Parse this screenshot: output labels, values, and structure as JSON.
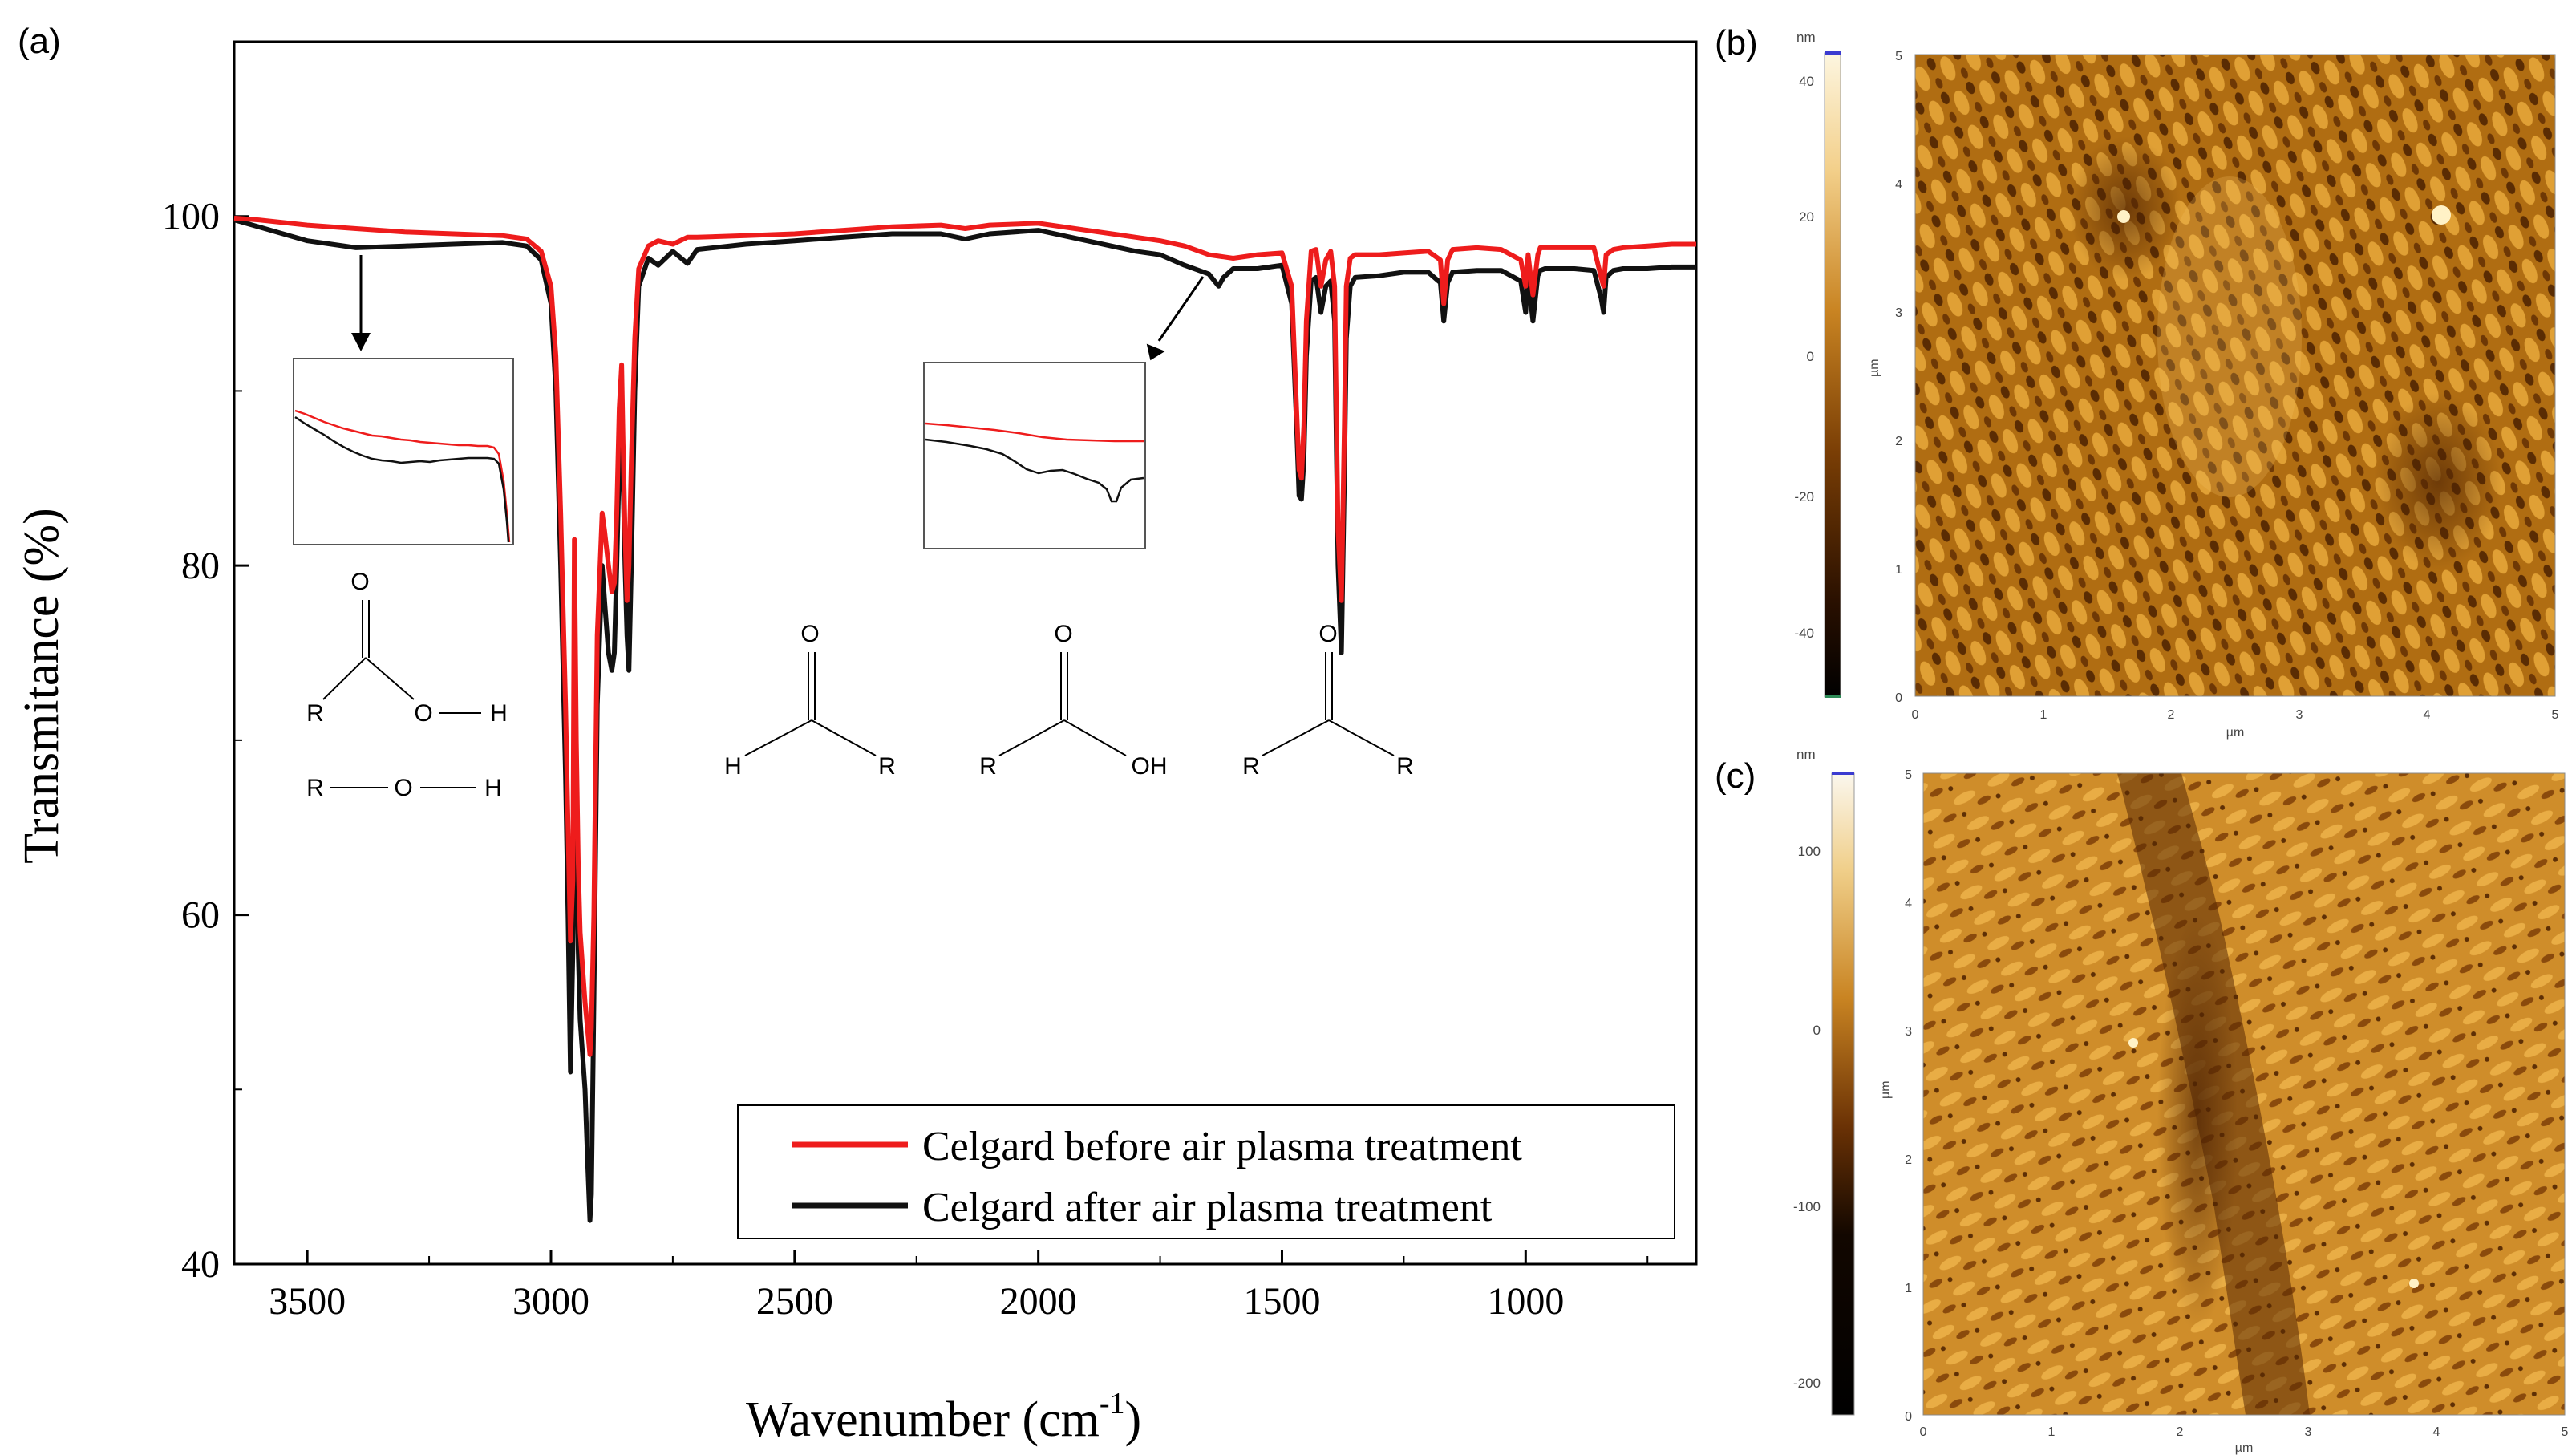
{
  "panel_labels": {
    "a": "(a)",
    "b": "(b)",
    "c": "(c)"
  },
  "colors": {
    "before": "#ee1c1c",
    "after": "#111111",
    "axis": "#000000"
  },
  "chart_data": [
    {
      "type": "line",
      "title": "",
      "xlabel_main": "Wavenumber (cm",
      "xlabel_sup": "-1",
      "xlabel_close": ")",
      "ylabel": "Transmitance (%)",
      "xlim": [
        3650,
        650
      ],
      "ylim": [
        40,
        110
      ],
      "xticks": [
        3500,
        3000,
        2500,
        2000,
        1500,
        1000
      ],
      "xtick_labels": [
        "3500",
        "3000",
        "2500",
        "2000",
        "1500",
        "1000"
      ],
      "yticks": [
        40,
        60,
        80,
        100
      ],
      "ytick_labels": [
        "40",
        "60",
        "80",
        "100"
      ],
      "legend_position": "bottom-right",
      "series": [
        {
          "name": "Celgard before air plasma treatment",
          "color": "#ee1c1c",
          "x": [
            3650,
            3600,
            3500,
            3400,
            3300,
            3200,
            3100,
            3050,
            3020,
            3000,
            2990,
            2980,
            2970,
            2965,
            2960,
            2955,
            2952,
            2948,
            2944,
            2940,
            2930,
            2920,
            2917,
            2912,
            2905,
            2895,
            2890,
            2882,
            2875,
            2870,
            2865,
            2860,
            2855,
            2852,
            2848,
            2844,
            2840,
            2835,
            2828,
            2820,
            2800,
            2780,
            2750,
            2720,
            2700,
            2600,
            2500,
            2400,
            2300,
            2200,
            2150,
            2100,
            2000,
            1900,
            1800,
            1750,
            1700,
            1650,
            1600,
            1550,
            1500,
            1480,
            1470,
            1465,
            1460,
            1455,
            1450,
            1440,
            1430,
            1420,
            1410,
            1400,
            1392,
            1385,
            1378,
            1372,
            1368,
            1360,
            1350,
            1300,
            1250,
            1200,
            1175,
            1168,
            1160,
            1150,
            1100,
            1050,
            1010,
            1000,
            995,
            985,
            975,
            970,
            960,
            900,
            860,
            845,
            840,
            835,
            820,
            800,
            750,
            700,
            650
          ],
          "values": [
            99.9,
            99.8,
            99.5,
            99.3,
            99.1,
            99.0,
            98.9,
            98.7,
            98.0,
            96.0,
            92.0,
            83.0,
            72.0,
            65.0,
            58.5,
            62.0,
            81.5,
            70.0,
            63.0,
            59.0,
            55.0,
            52.0,
            53.5,
            60.0,
            76.0,
            83.0,
            82.0,
            80.0,
            78.5,
            79.0,
            83.0,
            89.0,
            91.5,
            87.0,
            82.0,
            78.0,
            80.0,
            86.0,
            93.0,
            97.0,
            98.3,
            98.6,
            98.4,
            98.8,
            98.8,
            98.9,
            99.0,
            99.2,
            99.4,
            99.5,
            99.3,
            99.5,
            99.6,
            99.2,
            98.8,
            98.6,
            98.3,
            97.8,
            97.6,
            97.8,
            97.9,
            96.0,
            89.0,
            85.5,
            85.0,
            88.0,
            94.0,
            98.0,
            98.1,
            96.0,
            97.5,
            98.0,
            96.0,
            82.0,
            78.0,
            88.0,
            96.0,
            97.6,
            97.8,
            97.8,
            97.9,
            98.0,
            97.5,
            95.0,
            97.5,
            98.1,
            98.2,
            98.1,
            97.5,
            96.0,
            97.8,
            95.5,
            97.8,
            98.2,
            98.2,
            98.2,
            98.2,
            96.5,
            96.0,
            97.8,
            98.1,
            98.2,
            98.3,
            98.4,
            98.4
          ]
        },
        {
          "name": "Celgard after air plasma treatment",
          "color": "#111111",
          "x": [
            3650,
            3600,
            3550,
            3500,
            3450,
            3400,
            3300,
            3200,
            3100,
            3050,
            3020,
            3000,
            2990,
            2980,
            2970,
            2965,
            2960,
            2955,
            2952,
            2948,
            2944,
            2940,
            2930,
            2925,
            2920,
            2917,
            2912,
            2905,
            2895,
            2890,
            2882,
            2875,
            2870,
            2865,
            2860,
            2855,
            2852,
            2848,
            2844,
            2840,
            2835,
            2828,
            2820,
            2800,
            2780,
            2750,
            2720,
            2700,
            2600,
            2500,
            2400,
            2300,
            2200,
            2150,
            2100,
            2000,
            1900,
            1800,
            1750,
            1700,
            1650,
            1630,
            1620,
            1600,
            1550,
            1500,
            1480,
            1470,
            1465,
            1460,
            1455,
            1450,
            1440,
            1430,
            1420,
            1410,
            1400,
            1392,
            1385,
            1378,
            1372,
            1368,
            1360,
            1350,
            1300,
            1250,
            1200,
            1175,
            1168,
            1160,
            1150,
            1100,
            1050,
            1010,
            1000,
            995,
            985,
            975,
            970,
            960,
            900,
            860,
            845,
            840,
            835,
            820,
            800,
            750,
            700,
            650
          ],
          "values": [
            99.8,
            99.4,
            99.0,
            98.6,
            98.4,
            98.2,
            98.3,
            98.4,
            98.5,
            98.3,
            97.5,
            95.0,
            90.0,
            80.0,
            68.0,
            60.0,
            51.0,
            58.0,
            74.0,
            64.0,
            58.0,
            54.0,
            50.0,
            46.0,
            42.5,
            44.0,
            55.0,
            72.0,
            80.0,
            78.0,
            75.0,
            74.0,
            75.0,
            80.0,
            86.0,
            89.0,
            85.0,
            80.0,
            76.0,
            74.0,
            80.0,
            90.0,
            96.0,
            97.6,
            97.2,
            98.0,
            97.3,
            98.1,
            98.4,
            98.6,
            98.8,
            99.0,
            99.0,
            98.7,
            99.0,
            99.2,
            98.6,
            98.0,
            97.8,
            97.2,
            96.7,
            96.0,
            96.5,
            97.0,
            97.0,
            97.2,
            95.0,
            88.0,
            84.0,
            83.8,
            86.0,
            92.0,
            96.3,
            96.5,
            94.5,
            96.0,
            96.3,
            94.0,
            80.0,
            75.0,
            85.0,
            93.0,
            96.0,
            96.5,
            96.6,
            96.8,
            96.8,
            96.2,
            94.0,
            96.2,
            96.8,
            96.9,
            96.9,
            96.3,
            94.5,
            96.5,
            94.0,
            96.6,
            96.9,
            97.0,
            97.0,
            96.9,
            95.3,
            94.5,
            96.5,
            96.9,
            97.0,
            97.0,
            97.1,
            97.1
          ]
        }
      ]
    }
  ],
  "structures": {
    "s1": {
      "R": "R",
      "O_top": "O",
      "O_mid": "O",
      "H": "H"
    },
    "s2": {
      "R": "R",
      "O": "O",
      "H": "H"
    },
    "s3": {
      "O": "O",
      "H": "H",
      "R": "R"
    },
    "s4": {
      "O": "O",
      "R": "R",
      "OH": "OH"
    },
    "s5": {
      "O": "O",
      "R_left": "R",
      "R_right": "R"
    }
  },
  "afm_b": {
    "unit_label": "nm",
    "scale_ticks": [
      "40",
      "20",
      "0",
      "-20",
      "-40"
    ],
    "axis_unit": "µm",
    "x_ticks": [
      "0",
      "1",
      "2",
      "3",
      "4",
      "5"
    ],
    "y_ticks": [
      "5",
      "4",
      "3",
      "2",
      "1",
      "0"
    ]
  },
  "afm_c": {
    "unit_label": "nm",
    "scale_ticks": [
      "100",
      "0",
      "-100",
      "-200"
    ],
    "axis_unit": "µm",
    "x_ticks": [
      "0",
      "1",
      "2",
      "3",
      "4",
      "5"
    ],
    "y_ticks": [
      "5",
      "4",
      "3",
      "2",
      "1",
      "0"
    ]
  }
}
